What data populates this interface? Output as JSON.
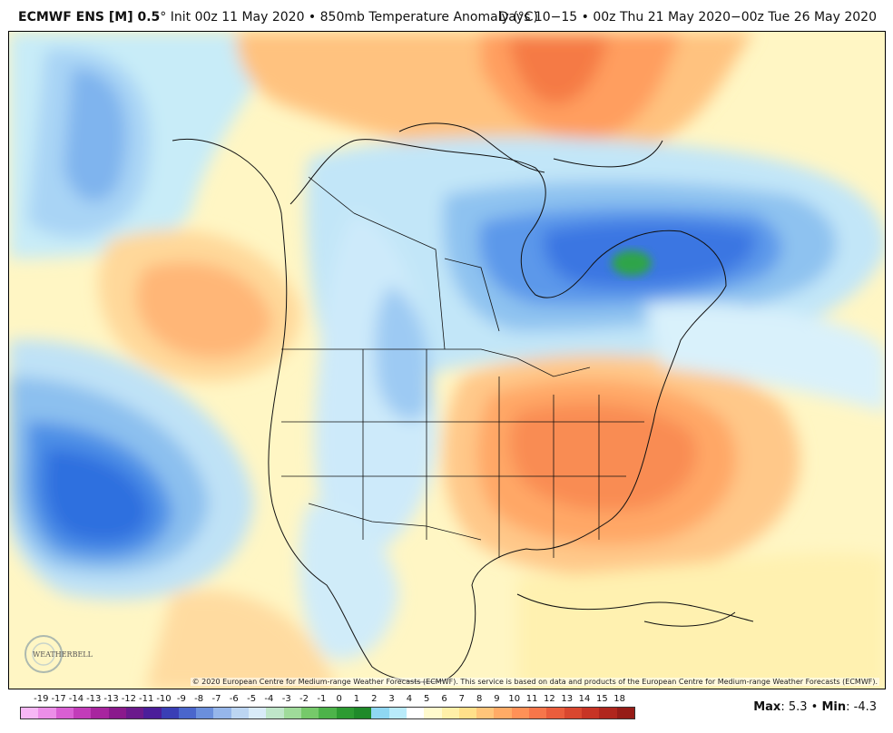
{
  "header": {
    "model": "ECMWF ENS [M] 0.5",
    "degree": "°",
    "init": " Init 00z 11 May 2020 • 850mb Temperature Anomaly (°C)",
    "valid": "Days 10−15 • 00z Thu 21 May 2020−00z Tue 26 May 2020"
  },
  "copyright": "© 2020 European Centre for Medium-range Weather Forecasts (ECMWF). This service is based on data and products of the European Centre for Medium-range Weather Forecasts (ECMWF).",
  "logo": {
    "text": "WEATHERBELL",
    "icon": "weatherbell-logo"
  },
  "stats": {
    "max_label": "Max",
    "max_value": ": 5.3 • ",
    "min_label": "Min",
    "min_value": ": -4.3"
  },
  "colorbar": {
    "labels": [
      "-19",
      "-17",
      "-14",
      "-13",
      "-13",
      "-12",
      "-11",
      "-10",
      "-9",
      "-8",
      "-7",
      "-6",
      "-5",
      "-4",
      "-3",
      "-2",
      "-1",
      "0",
      "1",
      "2",
      "3",
      "4",
      "5",
      "6",
      "7",
      "8",
      "9",
      "10",
      "11",
      "12",
      "13",
      "14",
      "15",
      "18"
    ],
    "colors": [
      "#f7b7f5",
      "#ec8ee8",
      "#d95fd3",
      "#c23cb9",
      "#a8259f",
      "#8a1a8c",
      "#6b1a8c",
      "#4b1e9a",
      "#3a3fb5",
      "#4a66cc",
      "#6b8fdc",
      "#96b6ea",
      "#bcd5f2",
      "#d9ebf8",
      "#bfe6c9",
      "#9fdb9a",
      "#76c96a",
      "#4db34a",
      "#2d9b32",
      "#1f8a2a",
      "#8fd7f2",
      "#b9ebfa",
      "#ffffff",
      "#fffacd",
      "#fff0a8",
      "#ffe08a",
      "#ffc57a",
      "#ffab66",
      "#ff9157",
      "#f7764a",
      "#ea5d3c",
      "#d9472f",
      "#c73425",
      "#b0261d",
      "#961c17"
    ]
  },
  "map": {
    "description_color_warm": "#f39a52",
    "description_color_cold": "#2f6fe0",
    "features": [
      "north-pacific-cold-anomaly",
      "eastern-us-warm-anomaly",
      "hudson-bay-cold-anomaly",
      "greenland-warm-anomaly"
    ]
  }
}
